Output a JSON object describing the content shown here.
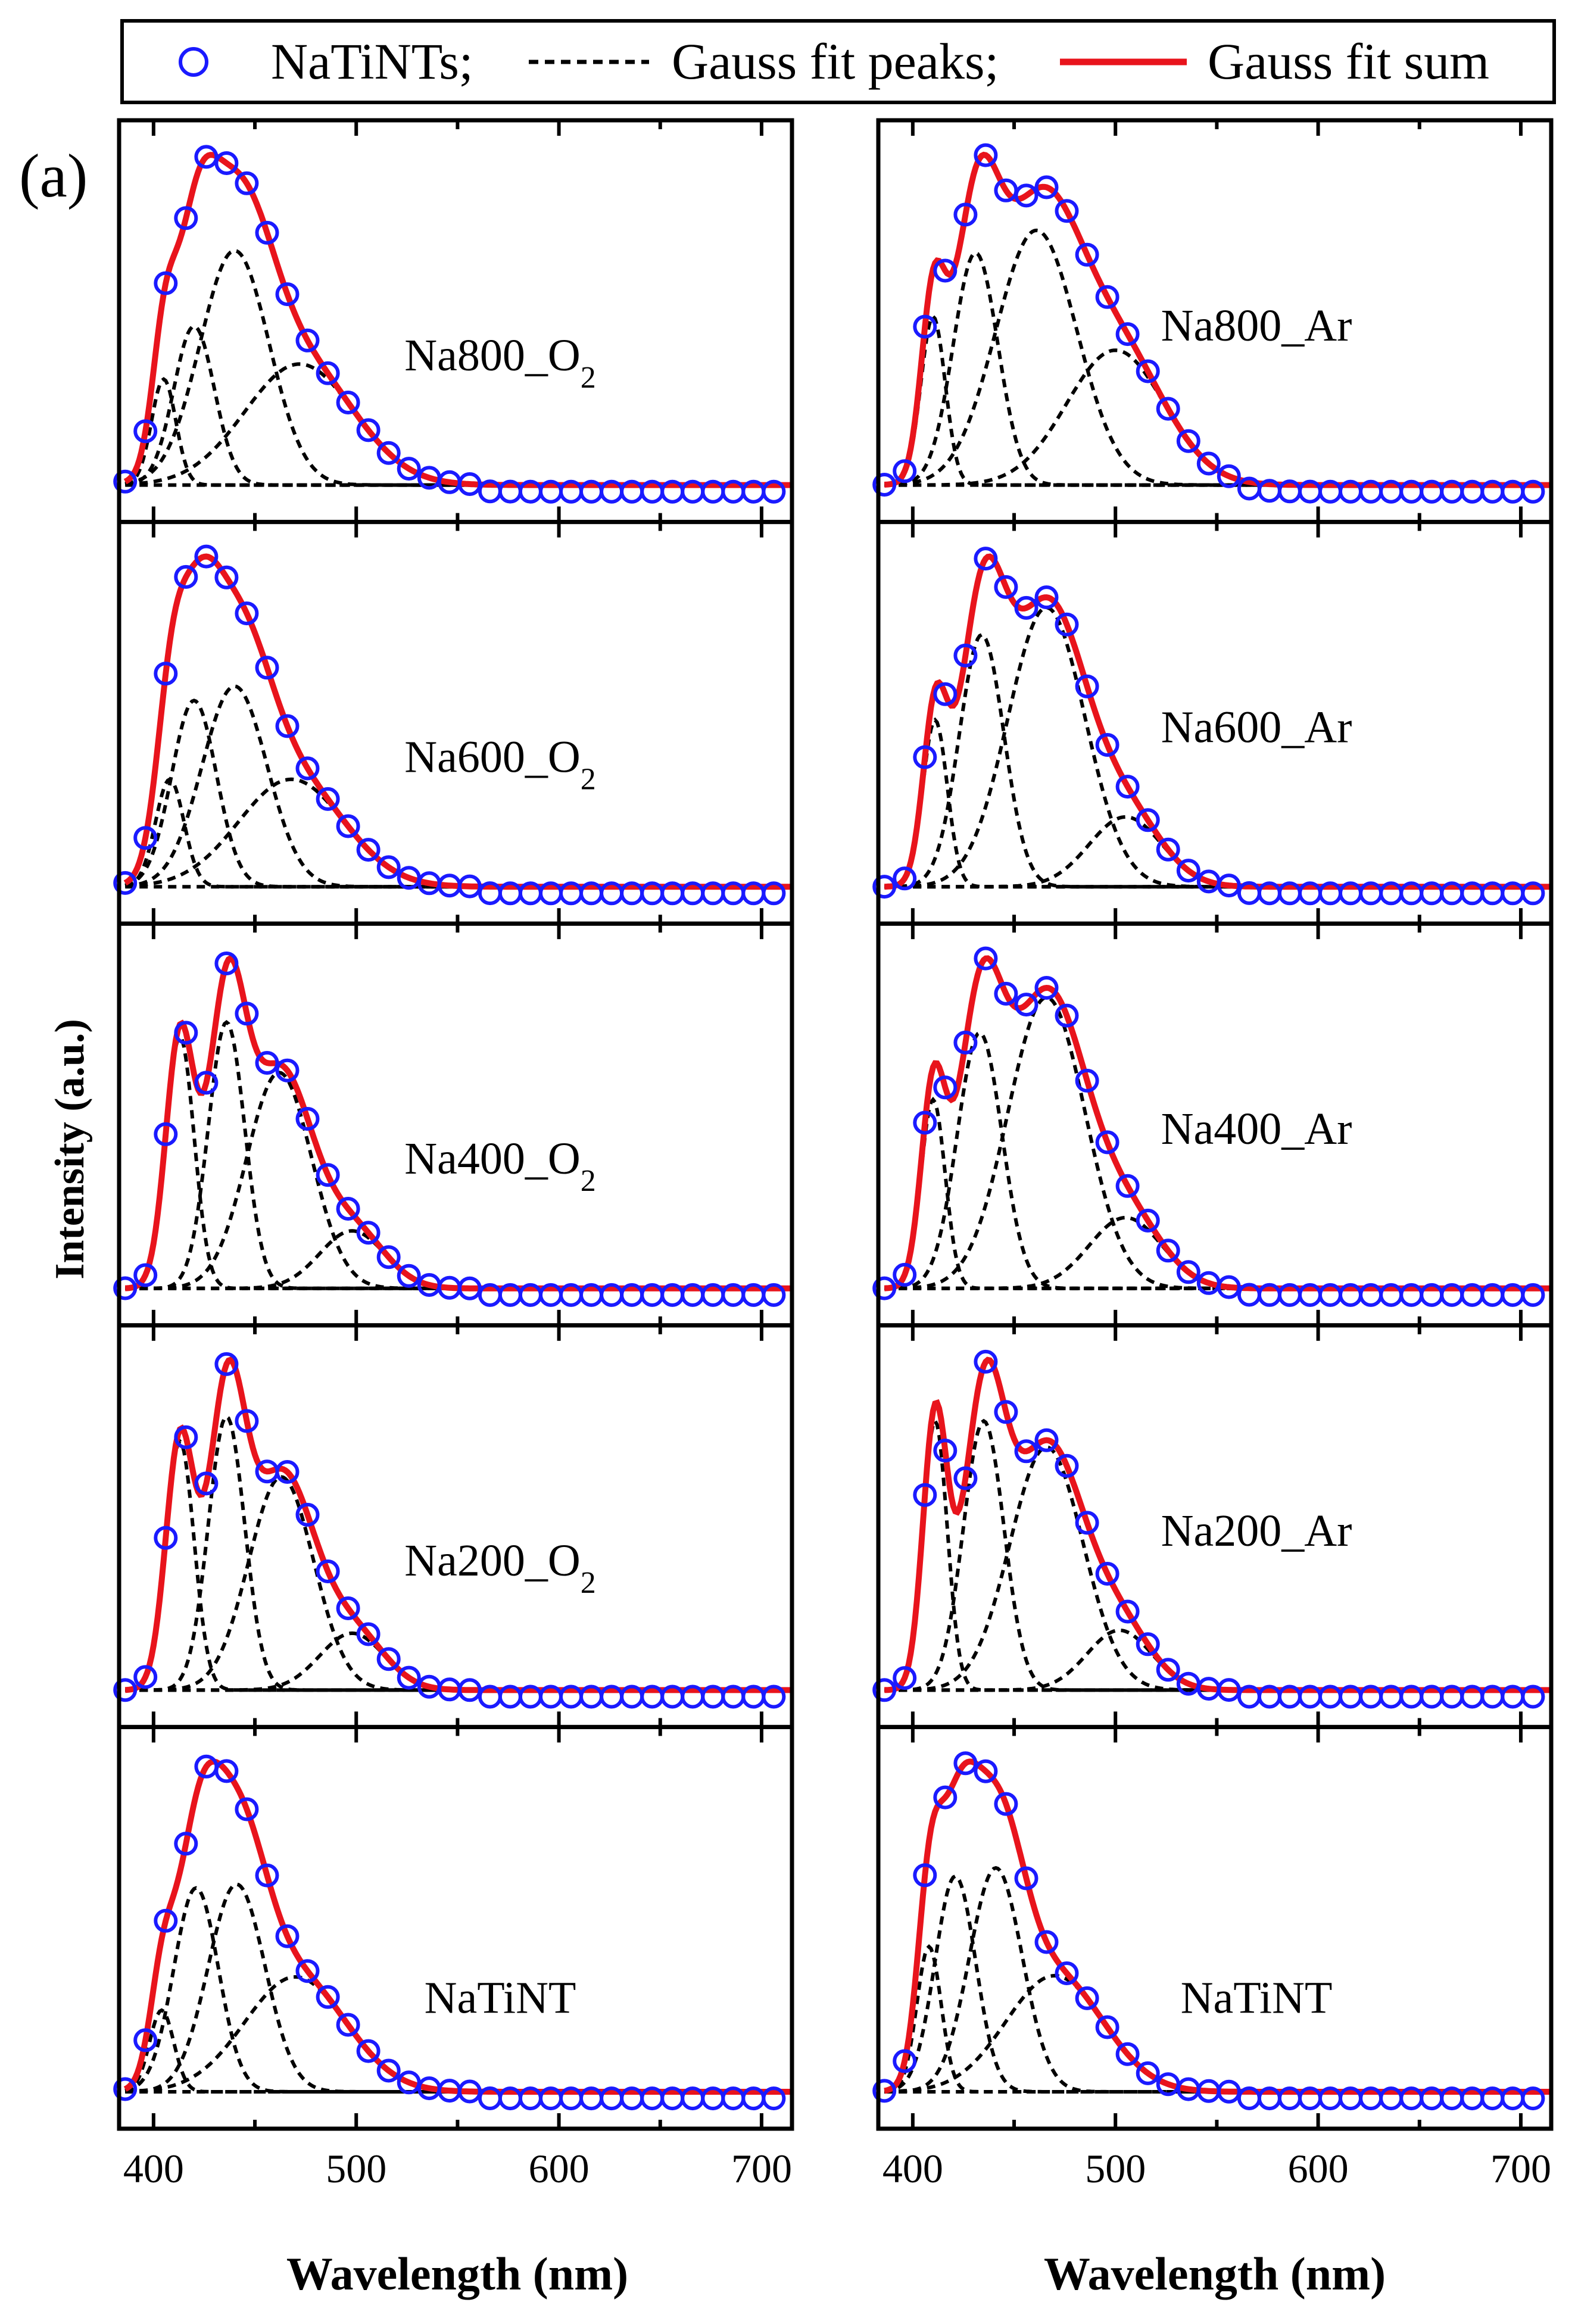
{
  "panel_label": "(a)",
  "y_axis_label": "Intensity (a.u.)",
  "legend": {
    "symbol_label": "NaTiNTs;",
    "peaks_label": "Gauss fit peaks;",
    "sum_label": "Gauss fit sum"
  },
  "colors": {
    "symbol": "#1a1aff",
    "fit_sum": "#e8141c",
    "peaks": "#000000",
    "axes": "#000000"
  },
  "chart_data": {
    "type": "line",
    "xlabel": "Wavelength (nm)",
    "ylabel": "Intensity (a.u.)",
    "xlim": [
      383,
      715
    ],
    "xticks": [
      400,
      500,
      600,
      700
    ],
    "tick_labels": [
      "400",
      "500",
      "600",
      "700"
    ],
    "y_ticks_shown": false,
    "marker_step_nm": 10,
    "columns": [
      {
        "name": "O2",
        "panels": [
          {
            "label_main": "Na800_O",
            "label_sub": "2",
            "norm_max": 1.0,
            "peaks": [
              {
                "center": 405,
                "sigma": 6,
                "amp": 0.28
              },
              {
                "center": 420,
                "sigma": 10,
                "amp": 0.42
              },
              {
                "center": 440,
                "sigma": 17,
                "amp": 0.62
              },
              {
                "center": 472,
                "sigma": 27,
                "amp": 0.32
              }
            ],
            "baseline_peak": 510,
            "baseline_amp": 0.01
          },
          {
            "label_main": "Na600_O",
            "label_sub": "2",
            "norm_max": 1.0,
            "peaks": [
              {
                "center": 408,
                "sigma": 7,
                "amp": 0.3
              },
              {
                "center": 420,
                "sigma": 11,
                "amp": 0.52
              },
              {
                "center": 440,
                "sigma": 16,
                "amp": 0.56
              },
              {
                "center": 468,
                "sigma": 26,
                "amp": 0.3
              }
            ],
            "baseline_peak": 510,
            "baseline_amp": 0.01
          },
          {
            "label_main": "Na400_O",
            "label_sub": "2",
            "norm_max": 1.0,
            "peaks": [
              {
                "center": 413,
                "sigma": 7,
                "amp": 0.7
              },
              {
                "center": 436,
                "sigma": 9,
                "amp": 0.74
              },
              {
                "center": 462,
                "sigma": 16,
                "amp": 0.6
              },
              {
                "center": 498,
                "sigma": 16,
                "amp": 0.16
              }
            ],
            "baseline_peak": 510,
            "baseline_amp": 0.01
          },
          {
            "label_main": "Na200_O",
            "label_sub": "2",
            "norm_max": 1.0,
            "peaks": [
              {
                "center": 413,
                "sigma": 7,
                "amp": 0.7
              },
              {
                "center": 436,
                "sigma": 9,
                "amp": 0.77
              },
              {
                "center": 463,
                "sigma": 16,
                "amp": 0.6
              },
              {
                "center": 498,
                "sigma": 16,
                "amp": 0.16
              }
            ],
            "baseline_peak": 510,
            "baseline_amp": 0.01
          },
          {
            "label_main": "NaTiNT",
            "label_sub": "",
            "norm_max": 1.0,
            "peaks": [
              {
                "center": 404,
                "sigma": 6,
                "amp": 0.22
              },
              {
                "center": 421,
                "sigma": 11,
                "amp": 0.55
              },
              {
                "center": 441,
                "sigma": 14,
                "amp": 0.56
              },
              {
                "center": 470,
                "sigma": 25,
                "amp": 0.31
              }
            ],
            "baseline_peak": 510,
            "baseline_amp": 0.01
          }
        ]
      },
      {
        "name": "Ar",
        "panels": [
          {
            "label_main": "Na800_Ar",
            "label_sub": "",
            "norm_max": 1.0,
            "peaks": [
              {
                "center": 410,
                "sigma": 6,
                "amp": 0.45
              },
              {
                "center": 431,
                "sigma": 11,
                "amp": 0.62
              },
              {
                "center": 461,
                "sigma": 20,
                "amp": 0.68
              },
              {
                "center": 500,
                "sigma": 24,
                "amp": 0.36
              }
            ],
            "baseline_peak": 520,
            "baseline_amp": 0.01
          },
          {
            "label_main": "Na600_Ar",
            "label_sub": "",
            "norm_max": 1.0,
            "peaks": [
              {
                "center": 411,
                "sigma": 6,
                "amp": 0.43
              },
              {
                "center": 434,
                "sigma": 11,
                "amp": 0.65
              },
              {
                "center": 466,
                "sigma": 19,
                "amp": 0.72
              },
              {
                "center": 505,
                "sigma": 18,
                "amp": 0.18
              }
            ],
            "baseline_peak": 520,
            "baseline_amp": 0.01
          },
          {
            "label_main": "Na400_Ar",
            "label_sub": "",
            "norm_max": 1.0,
            "peaks": [
              {
                "center": 410,
                "sigma": 6,
                "amp": 0.48
              },
              {
                "center": 433,
                "sigma": 11,
                "amp": 0.65
              },
              {
                "center": 466,
                "sigma": 19,
                "amp": 0.74
              },
              {
                "center": 505,
                "sigma": 18,
                "amp": 0.18
              }
            ],
            "baseline_peak": 520,
            "baseline_amp": 0.01
          },
          {
            "label_main": "Na200_Ar",
            "label_sub": "",
            "norm_max": 1.0,
            "peaks": [
              {
                "center": 411,
                "sigma": 6,
                "amp": 0.72
              },
              {
                "center": 435,
                "sigma": 10,
                "amp": 0.72
              },
              {
                "center": 466,
                "sigma": 18,
                "amp": 0.65
              },
              {
                "center": 502,
                "sigma": 16,
                "amp": 0.16
              }
            ],
            "baseline_peak": 520,
            "baseline_amp": 0.01
          },
          {
            "label_main": "NaTiNT",
            "label_sub": "",
            "norm_max": 1.0,
            "peaks": [
              {
                "center": 408,
                "sigma": 6,
                "amp": 0.35
              },
              {
                "center": 421,
                "sigma": 10,
                "amp": 0.52
              },
              {
                "center": 441,
                "sigma": 13,
                "amp": 0.54
              },
              {
                "center": 470,
                "sigma": 24,
                "amp": 0.28
              }
            ],
            "baseline_peak": 510,
            "baseline_amp": 0.01
          }
        ]
      }
    ]
  }
}
